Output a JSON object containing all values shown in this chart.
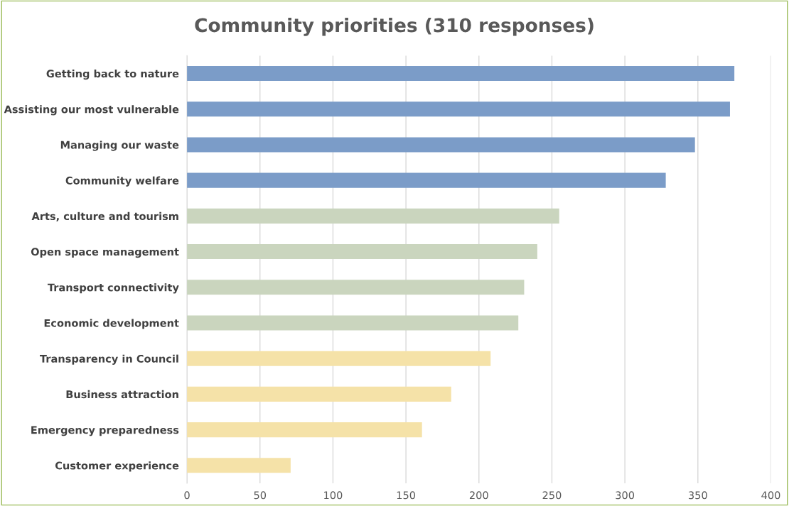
{
  "chart_data": {
    "type": "bar",
    "orientation": "horizontal",
    "title": "Community priorities (310 responses)",
    "categories": [
      "Getting back to nature",
      "Assisting our most vulnerable",
      "Managing our waste",
      "Community welfare",
      "Arts, culture and tourism",
      "Open space management",
      "Transport connectivity",
      "Economic development",
      "Transparency in Council",
      "Business attraction",
      "Emergency preparedness",
      "Customer experience"
    ],
    "values": [
      375,
      372,
      348,
      328,
      255,
      240,
      231,
      227,
      208,
      181,
      161,
      71
    ],
    "colors": [
      "#7b9cc8",
      "#7b9cc8",
      "#7b9cc8",
      "#7b9cc8",
      "#cad5be",
      "#cad5be",
      "#cad5be",
      "#cad5be",
      "#f5e2a8",
      "#f5e2a8",
      "#f5e2a8",
      "#f5e2a8"
    ],
    "xlim": [
      0,
      400
    ],
    "xticks": [
      0,
      50,
      100,
      150,
      200,
      250,
      300,
      350,
      400
    ],
    "grid": "x"
  }
}
